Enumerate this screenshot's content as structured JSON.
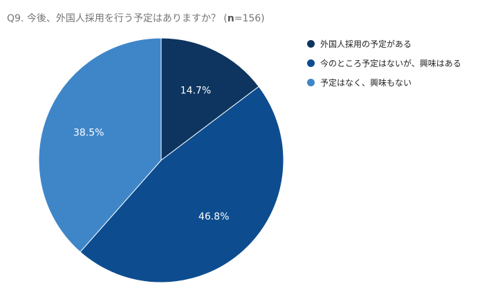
{
  "title": {
    "prefix": "Q9. 今後、外国人採用を行う予定はありますか？ (",
    "n_label": "n",
    "suffix": "=156)"
  },
  "chart_data": {
    "type": "pie",
    "title": "Q9. 今後、外国人採用を行う予定はありますか？ (n=156)",
    "n": 156,
    "start_angle_deg": 0,
    "direction": "clockwise",
    "legend_position": "right",
    "slices": [
      {
        "label": "外国人採用の予定がある",
        "value": 14.7,
        "value_label": "14.7%",
        "color": "#0d355f"
      },
      {
        "label": "今のところ予定はないが、興味はある",
        "value": 46.8,
        "value_label": "46.8%",
        "color": "#0d4d8f"
      },
      {
        "label": "予定はなく、興味もない",
        "value": 38.5,
        "value_label": "38.5%",
        "color": "#3f86c9"
      }
    ]
  }
}
